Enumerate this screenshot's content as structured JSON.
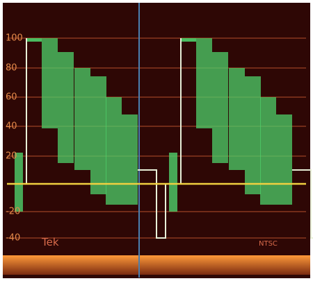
{
  "graticule": {
    "labels": [
      "100",
      "80",
      "60",
      "40",
      "20",
      "-20",
      "-40"
    ]
  },
  "footer": {
    "brand": "Tek",
    "mode": "NTSC"
  }
}
